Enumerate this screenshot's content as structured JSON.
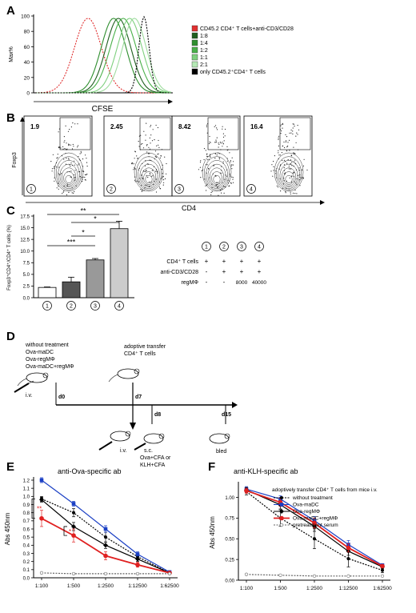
{
  "panel_labels": [
    "A",
    "B",
    "C",
    "D",
    "E",
    "F"
  ],
  "panelA": {
    "ylabel": "Max%",
    "xlabel": "CFSE",
    "yticks": [
      "0",
      "20",
      "40",
      "60",
      "80",
      "100"
    ],
    "legend": [
      {
        "label": "CD45.2 CD4⁺ T cells+anti-CD3/CD28",
        "color": "#e03030"
      },
      {
        "label": "1:8",
        "color": "#1f5f1f"
      },
      {
        "label": "1:4",
        "color": "#2f8f2f"
      },
      {
        "label": "1:2",
        "color": "#49b049"
      },
      {
        "label": "1:1",
        "color": "#7fd07f"
      },
      {
        "label": "2:1",
        "color": "#b5e8b5"
      },
      {
        "label": "only CD45.2⁺CD4⁺ T cells",
        "color": "#000000"
      }
    ]
  },
  "panelB": {
    "ylabel": "Foxp3",
    "xlabel": "CD4",
    "plots": [
      {
        "value": "1.9",
        "num": "1"
      },
      {
        "value": "2.45",
        "num": "2"
      },
      {
        "value": "8.42",
        "num": "3"
      },
      {
        "value": "16.4",
        "num": "4"
      }
    ]
  },
  "panelC": {
    "ylabel": "Foxp3⁺CD4⁺/CD4⁺ T cells (%)",
    "yticks": [
      "0.0",
      "2.5",
      "5.0",
      "7.5",
      "10.0",
      "12.5",
      "15.0",
      "17.5"
    ],
    "sig": [
      "**",
      "*",
      "*",
      "***"
    ],
    "table": {
      "cols": [
        "1",
        "2",
        "3",
        "4"
      ],
      "rows": [
        {
          "label": "CD4⁺ T cells",
          "vals": [
            "+",
            "+",
            "+",
            "+"
          ]
        },
        {
          "label": "anti-CD3/CD28",
          "vals": [
            "-",
            "+",
            "+",
            "+"
          ]
        },
        {
          "label": "regMΦ",
          "vals": [
            "-",
            "-",
            "8000",
            "40000"
          ]
        }
      ]
    }
  },
  "chart_data": [
    {
      "type": "bar",
      "categories": [
        "1",
        "2",
        "3",
        "4"
      ],
      "values": [
        2.2,
        3.4,
        8.1,
        14.8
      ],
      "errors": [
        0.1,
        1.0,
        0.3,
        1.6
      ],
      "colors": [
        "#ffffff",
        "#555555",
        "#999999",
        "#cccccc"
      ],
      "ylabel": "Foxp3⁺CD4⁺/CD4⁺ T cells (%)",
      "ylim": [
        0,
        17.5
      ]
    },
    {
      "type": "line",
      "title": "anti-Ova-specific ab",
      "ylabel": "Abs 450nm",
      "categories": [
        "1:100",
        "1:500",
        "1:2500",
        "1:12500",
        "1:62500"
      ],
      "ylim": [
        0,
        1.2
      ],
      "yticks": [
        "0.0",
        "0.1",
        "0.2",
        "0.3",
        "0.4",
        "0.5",
        "0.6",
        "0.7",
        "0.8",
        "0.9",
        "1.0",
        "1.1",
        "1.2"
      ],
      "series": [
        {
          "name": "without treatment",
          "values": [
            0.97,
            0.8,
            0.5,
            0.26,
            0.06
          ],
          "errors": [
            0.03,
            0.05,
            0.06,
            0.03,
            0.01
          ],
          "color": "#000000",
          "dash": true,
          "marker": "circle"
        },
        {
          "name": "Ova-maDC",
          "values": [
            1.2,
            0.91,
            0.6,
            0.29,
            0.07
          ],
          "errors": [
            0.03,
            0.03,
            0.04,
            0.03,
            0.01
          ],
          "color": "#1a3fc4",
          "dash": false,
          "marker": "square"
        },
        {
          "name": "Ova-regMΦ",
          "values": [
            0.96,
            0.63,
            0.4,
            0.23,
            0.06
          ],
          "errors": [
            0.03,
            0.05,
            0.04,
            0.03,
            0.01
          ],
          "color": "#000000",
          "dash": false,
          "marker": "diamond"
        },
        {
          "name": "Ova-maDC+regMΦ",
          "values": [
            0.73,
            0.52,
            0.27,
            0.16,
            0.06
          ],
          "errors": [
            0.1,
            0.08,
            0.05,
            0.03,
            0.01
          ],
          "color": "#e02020",
          "dash": false,
          "marker": "circle"
        },
        {
          "name": "pretreatment serum",
          "values": [
            0.06,
            0.05,
            0.05,
            0.05,
            0.05
          ],
          "errors": [
            0,
            0,
            0,
            0,
            0
          ],
          "color": "#666666",
          "dash": true,
          "marker": "open"
        }
      ],
      "sig": [
        "**",
        "*"
      ]
    },
    {
      "type": "line",
      "title": "anti-KLH-specific ab",
      "ylabel": "Abs 450nm",
      "categories": [
        "1:100",
        "1:500",
        "1:2500",
        "1:12500",
        "1:62500"
      ],
      "ylim": [
        0,
        1.15
      ],
      "yticks": [
        "0.00",
        "0.25",
        "0.50",
        "0.75",
        "1.00"
      ],
      "legend_title": "adoptively transfer CD4⁺ T cells from mice i.v.",
      "series": [
        {
          "name": "without treatment",
          "values": [
            1.07,
            0.75,
            0.5,
            0.26,
            0.12
          ],
          "errors": [
            0.04,
            0.1,
            0.12,
            0.1,
            0.03
          ],
          "color": "#000000",
          "dash": true,
          "marker": "circle"
        },
        {
          "name": "Ova-maDC",
          "values": [
            1.1,
            0.98,
            0.72,
            0.43,
            0.18
          ],
          "errors": [
            0.03,
            0.04,
            0.05,
            0.05,
            0.02
          ],
          "color": "#1a3fc4",
          "dash": false,
          "marker": "square"
        },
        {
          "name": "Ova-regMΦ",
          "values": [
            1.09,
            0.91,
            0.65,
            0.35,
            0.16
          ],
          "errors": [
            0.03,
            0.05,
            0.06,
            0.05,
            0.02
          ],
          "color": "#000000",
          "dash": false,
          "marker": "diamond"
        },
        {
          "name": "Ova-maDC+regMΦ",
          "values": [
            1.08,
            0.94,
            0.69,
            0.39,
            0.17
          ],
          "errors": [
            0.03,
            0.05,
            0.06,
            0.05,
            0.02
          ],
          "color": "#e02020",
          "dash": false,
          "marker": "circle"
        },
        {
          "name": "pretreatment serum",
          "values": [
            0.07,
            0.06,
            0.05,
            0.05,
            0.05
          ],
          "errors": [
            0,
            0,
            0,
            0,
            0
          ],
          "color": "#666666",
          "dash": true,
          "marker": "open"
        }
      ]
    }
  ],
  "panelD": {
    "left_labels": [
      "without treatment",
      "Ova-maDC",
      "Ova-regMΦ",
      "Ova-maDC+regMΦ"
    ],
    "iv1": "i.v.",
    "d0": "d0",
    "transfer": [
      "adoptive transfer",
      "CD4⁺ T cells"
    ],
    "d7": "d7",
    "iv2": "i.v.",
    "d8": "d8",
    "sc": "s.c.",
    "immun": [
      "Ova+CFA or",
      "KLH+CFA"
    ],
    "d15": "d15",
    "bled": "bled"
  }
}
